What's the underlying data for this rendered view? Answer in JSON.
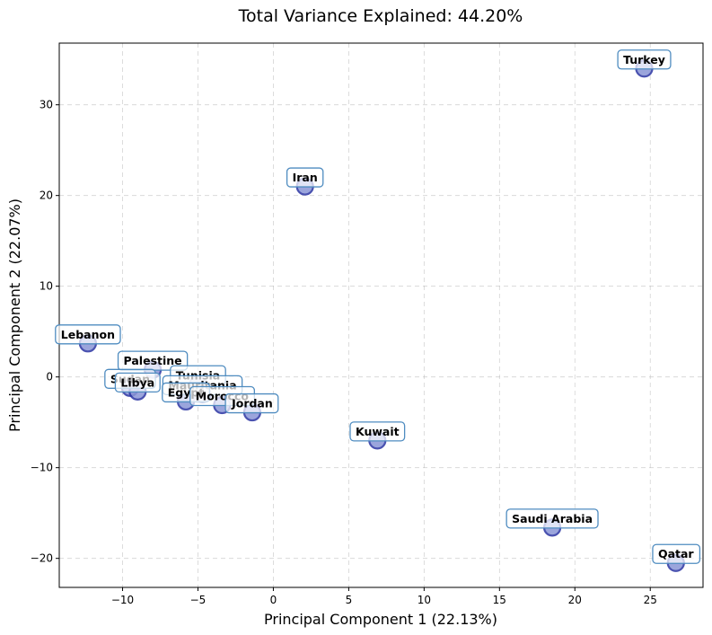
{
  "chart_data": {
    "type": "scatter",
    "title": "Total Variance Explained: 44.20%",
    "xlabel": "Principal Component 1 (22.13%)",
    "ylabel": "Principal Component 2 (22.07%)",
    "xlim": [
      -14.2,
      28.5
    ],
    "ylim": [
      -23.2,
      36.8
    ],
    "xticks": [
      -10,
      -5,
      0,
      5,
      10,
      15,
      20,
      25
    ],
    "yticks": [
      -20,
      -10,
      0,
      10,
      20,
      30
    ],
    "grid": true,
    "points": [
      {
        "label": "Turkey",
        "x": 24.6,
        "y": 34.0
      },
      {
        "label": "Iran",
        "x": 2.1,
        "y": 21.0
      },
      {
        "label": "Lebanon",
        "x": -12.3,
        "y": 3.7
      },
      {
        "label": "Palestine",
        "x": -8.0,
        "y": 0.8
      },
      {
        "label": "Sudan",
        "x": -9.5,
        "y": -1.2
      },
      {
        "label": "Libya",
        "x": -9.0,
        "y": -1.6
      },
      {
        "label": "Tunisia",
        "x": -5.0,
        "y": -0.8
      },
      {
        "label": "Mauritania",
        "x": -4.7,
        "y": -1.9
      },
      {
        "label": "Egypt",
        "x": -5.8,
        "y": -2.7
      },
      {
        "label": "Morocco",
        "x": -3.4,
        "y": -3.1
      },
      {
        "label": "Jordan",
        "x": -1.4,
        "y": -3.9
      },
      {
        "label": "Kuwait",
        "x": 6.9,
        "y": -7.0
      },
      {
        "label": "Saudi Arabia",
        "x": 18.5,
        "y": -16.6
      },
      {
        "label": "Qatar",
        "x": 26.7,
        "y": -20.5
      }
    ]
  }
}
